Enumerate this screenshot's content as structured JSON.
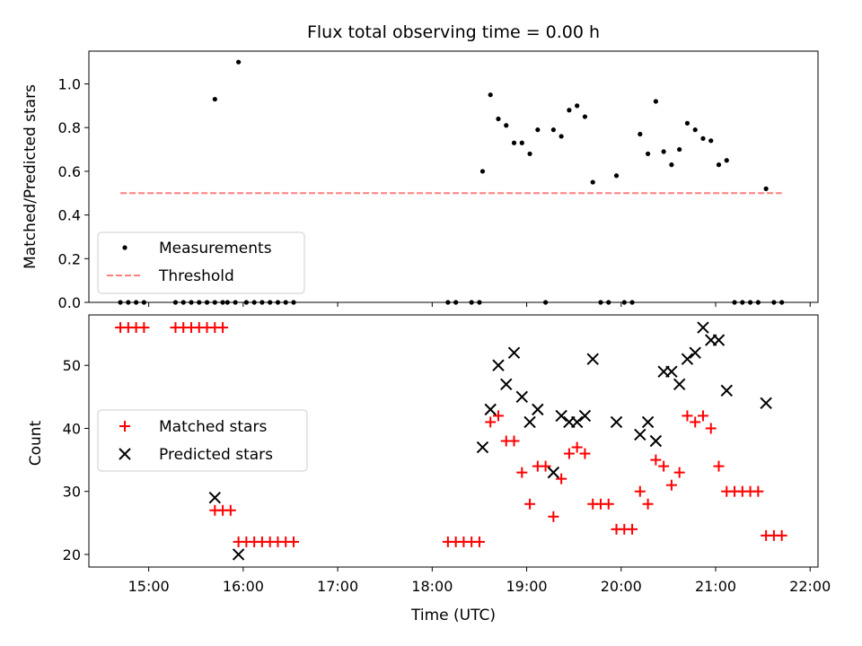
{
  "figure": {
    "title": "Flux total observing time = 0.00 h"
  },
  "chart_data": [
    {
      "type": "scatter",
      "panel": "top",
      "title": "Flux total observing time = 0.00 h",
      "ylabel": "Matched/Predicted stars",
      "xlabel": "",
      "xlim": [
        "14:22",
        "22:05"
      ],
      "ylim": [
        0,
        1.15
      ],
      "yticks": [
        "0.0",
        "0.2",
        "0.4",
        "0.6",
        "0.8",
        "1.0"
      ],
      "legend_position": "lower-left",
      "series": [
        {
          "name": "Measurements",
          "color": "#000000",
          "marker": "dot",
          "points": [
            [
              "14:42",
              0
            ],
            [
              "14:47",
              0
            ],
            [
              "14:52",
              0
            ],
            [
              "14:57",
              0
            ],
            [
              "15:17",
              0
            ],
            [
              "15:22",
              0
            ],
            [
              "15:27",
              0
            ],
            [
              "15:32",
              0
            ],
            [
              "15:37",
              0
            ],
            [
              "15:42",
              0
            ],
            [
              "15:47",
              0
            ],
            [
              "15:42",
              0.93
            ],
            [
              "15:57",
              1.1
            ],
            [
              "15:50",
              0
            ],
            [
              "15:55",
              0
            ],
            [
              "16:02",
              0
            ],
            [
              "16:07",
              0
            ],
            [
              "16:12",
              0
            ],
            [
              "16:17",
              0
            ],
            [
              "16:22",
              0
            ],
            [
              "16:27",
              0
            ],
            [
              "16:32",
              0
            ],
            [
              "18:10",
              0
            ],
            [
              "18:15",
              0
            ],
            [
              "18:25",
              0
            ],
            [
              "18:30",
              0
            ],
            [
              "18:32",
              0.6
            ],
            [
              "18:37",
              0.95
            ],
            [
              "18:42",
              0.84
            ],
            [
              "18:47",
              0.81
            ],
            [
              "18:52",
              0.73
            ],
            [
              "18:57",
              0.73
            ],
            [
              "19:02",
              0.68
            ],
            [
              "19:07",
              0.79
            ],
            [
              "19:12",
              0
            ],
            [
              "19:17",
              0.79
            ],
            [
              "19:22",
              0.76
            ],
            [
              "19:27",
              0.88
            ],
            [
              "19:32",
              0.9
            ],
            [
              "19:37",
              0.85
            ],
            [
              "19:42",
              0.55
            ],
            [
              "19:47",
              0
            ],
            [
              "19:52",
              0
            ],
            [
              "19:57",
              0.58
            ],
            [
              "20:02",
              0
            ],
            [
              "20:07",
              0
            ],
            [
              "20:12",
              0.77
            ],
            [
              "20:17",
              0.68
            ],
            [
              "20:22",
              0.92
            ],
            [
              "20:27",
              0.69
            ],
            [
              "20:32",
              0.63
            ],
            [
              "20:37",
              0.7
            ],
            [
              "20:42",
              0.82
            ],
            [
              "20:47",
              0.79
            ],
            [
              "20:52",
              0.75
            ],
            [
              "20:57",
              0.74
            ],
            [
              "21:02",
              0.63
            ],
            [
              "21:07",
              0.65
            ],
            [
              "21:12",
              0
            ],
            [
              "21:17",
              0
            ],
            [
              "21:22",
              0
            ],
            [
              "21:27",
              0
            ],
            [
              "21:32",
              0.52
            ],
            [
              "21:37",
              0
            ],
            [
              "21:42",
              0
            ]
          ]
        },
        {
          "name": "Threshold",
          "color": "#ff7f7f",
          "style": "dashed",
          "x": [
            "14:42",
            "21:42"
          ],
          "y": [
            0.5,
            0.5
          ]
        }
      ]
    },
    {
      "type": "scatter",
      "panel": "bottom",
      "ylabel": "Count",
      "xlabel": "Time (UTC)",
      "xlim": [
        "14:22",
        "22:05"
      ],
      "ylim": [
        18,
        58
      ],
      "xticks": [
        "15:00",
        "16:00",
        "17:00",
        "18:00",
        "19:00",
        "20:00",
        "21:00",
        "22:00"
      ],
      "yticks": [
        "20",
        "30",
        "40",
        "50"
      ],
      "legend_position": "center-left",
      "series": [
        {
          "name": "Matched stars",
          "color": "#ff0000",
          "marker": "plus",
          "points": [
            [
              "14:42",
              56
            ],
            [
              "14:47",
              56
            ],
            [
              "14:52",
              56
            ],
            [
              "14:57",
              56
            ],
            [
              "15:17",
              56
            ],
            [
              "15:22",
              56
            ],
            [
              "15:27",
              56
            ],
            [
              "15:32",
              56
            ],
            [
              "15:37",
              56
            ],
            [
              "15:42",
              56
            ],
            [
              "15:47",
              56
            ],
            [
              "15:42",
              27
            ],
            [
              "15:47",
              27
            ],
            [
              "15:52",
              27
            ],
            [
              "15:57",
              22
            ],
            [
              "16:02",
              22
            ],
            [
              "16:07",
              22
            ],
            [
              "16:12",
              22
            ],
            [
              "16:17",
              22
            ],
            [
              "16:22",
              22
            ],
            [
              "16:27",
              22
            ],
            [
              "16:32",
              22
            ],
            [
              "18:10",
              22
            ],
            [
              "18:15",
              22
            ],
            [
              "18:20",
              22
            ],
            [
              "18:25",
              22
            ],
            [
              "18:30",
              22
            ],
            [
              "18:37",
              41
            ],
            [
              "18:42",
              42
            ],
            [
              "18:47",
              38
            ],
            [
              "18:52",
              38
            ],
            [
              "18:57",
              33
            ],
            [
              "19:02",
              28
            ],
            [
              "19:07",
              34
            ],
            [
              "19:12",
              34
            ],
            [
              "19:17",
              26
            ],
            [
              "19:22",
              32
            ],
            [
              "19:27",
              36
            ],
            [
              "19:32",
              37
            ],
            [
              "19:37",
              36
            ],
            [
              "19:42",
              28
            ],
            [
              "19:47",
              28
            ],
            [
              "19:52",
              28
            ],
            [
              "19:57",
              24
            ],
            [
              "20:02",
              24
            ],
            [
              "20:07",
              24
            ],
            [
              "20:12",
              30
            ],
            [
              "20:17",
              28
            ],
            [
              "20:22",
              35
            ],
            [
              "20:27",
              34
            ],
            [
              "20:32",
              31
            ],
            [
              "20:37",
              33
            ],
            [
              "20:42",
              42
            ],
            [
              "20:47",
              41
            ],
            [
              "20:52",
              42
            ],
            [
              "20:57",
              40
            ],
            [
              "21:02",
              34
            ],
            [
              "21:07",
              30
            ],
            [
              "21:12",
              30
            ],
            [
              "21:17",
              30
            ],
            [
              "21:22",
              30
            ],
            [
              "21:27",
              30
            ],
            [
              "21:32",
              23
            ],
            [
              "21:37",
              23
            ],
            [
              "21:42",
              23
            ]
          ]
        },
        {
          "name": "Predicted stars",
          "color": "#000000",
          "marker": "x",
          "points": [
            [
              "15:42",
              29
            ],
            [
              "15:57",
              20
            ],
            [
              "18:32",
              37
            ],
            [
              "18:37",
              43
            ],
            [
              "18:42",
              50
            ],
            [
              "18:47",
              47
            ],
            [
              "18:52",
              52
            ],
            [
              "18:57",
              45
            ],
            [
              "19:02",
              41
            ],
            [
              "19:07",
              43
            ],
            [
              "19:17",
              33
            ],
            [
              "19:22",
              42
            ],
            [
              "19:27",
              41
            ],
            [
              "19:32",
              41
            ],
            [
              "19:37",
              42
            ],
            [
              "19:42",
              51
            ],
            [
              "19:57",
              41
            ],
            [
              "20:12",
              39
            ],
            [
              "20:17",
              41
            ],
            [
              "20:22",
              38
            ],
            [
              "20:27",
              49
            ],
            [
              "20:32",
              49
            ],
            [
              "20:37",
              47
            ],
            [
              "20:42",
              51
            ],
            [
              "20:47",
              52
            ],
            [
              "20:52",
              56
            ],
            [
              "20:57",
              54
            ],
            [
              "21:02",
              54
            ],
            [
              "21:07",
              46
            ],
            [
              "21:32",
              44
            ]
          ]
        }
      ]
    }
  ]
}
